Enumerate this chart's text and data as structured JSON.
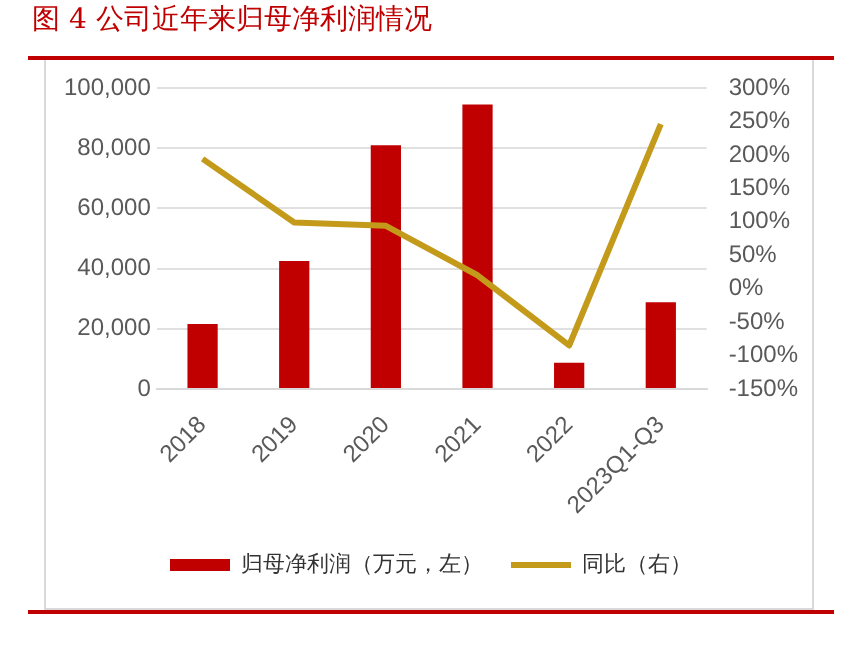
{
  "chart_data": {
    "type": "bar",
    "title": "图 4  公司近年来归母净利润情况",
    "categories": [
      "2018",
      "2019",
      "2020",
      "2021",
      "2022",
      "2023Q1-Q3"
    ],
    "series": [
      {
        "name": "归母净利润（万元，左）",
        "color": "#c00000",
        "values": [
          21600,
          42500,
          81000,
          94500,
          8700,
          28800
        ]
      },
      {
        "name": "同比（右）",
        "type": "line",
        "axis": "y2",
        "color": "#c49a1a",
        "values": [
          194,
          99,
          94,
          20,
          -85,
          246
        ]
      }
    ],
    "ylim": [
      0,
      100000
    ],
    "yticks": [
      0,
      {
        "value": 20000,
        "label": "20,000"
      },
      {
        "value": 40000,
        "label": "40,000"
      },
      {
        "value": 60000,
        "label": "60,000"
      },
      {
        "value": 80000,
        "label": "80,000"
      },
      {
        "value": 100000,
        "label": "100,000"
      }
    ],
    "y2lim": [
      -150,
      300
    ],
    "y2ticks": [
      {
        "value": -150,
        "label": "-150%"
      },
      {
        "value": -100,
        "label": "-100%"
      },
      {
        "value": -50,
        "label": "-50%"
      },
      {
        "value": 0,
        "label": "0%"
      },
      {
        "value": 50,
        "label": "50%"
      },
      {
        "value": 100,
        "label": "100%"
      },
      {
        "value": 150,
        "label": "150%"
      },
      {
        "value": 200,
        "label": "200%"
      },
      {
        "value": 250,
        "label": "250%"
      },
      {
        "value": 300,
        "label": "300%"
      }
    ],
    "grid": "y",
    "legend": "bottom",
    "marker": "none",
    "line_style": "solid"
  }
}
